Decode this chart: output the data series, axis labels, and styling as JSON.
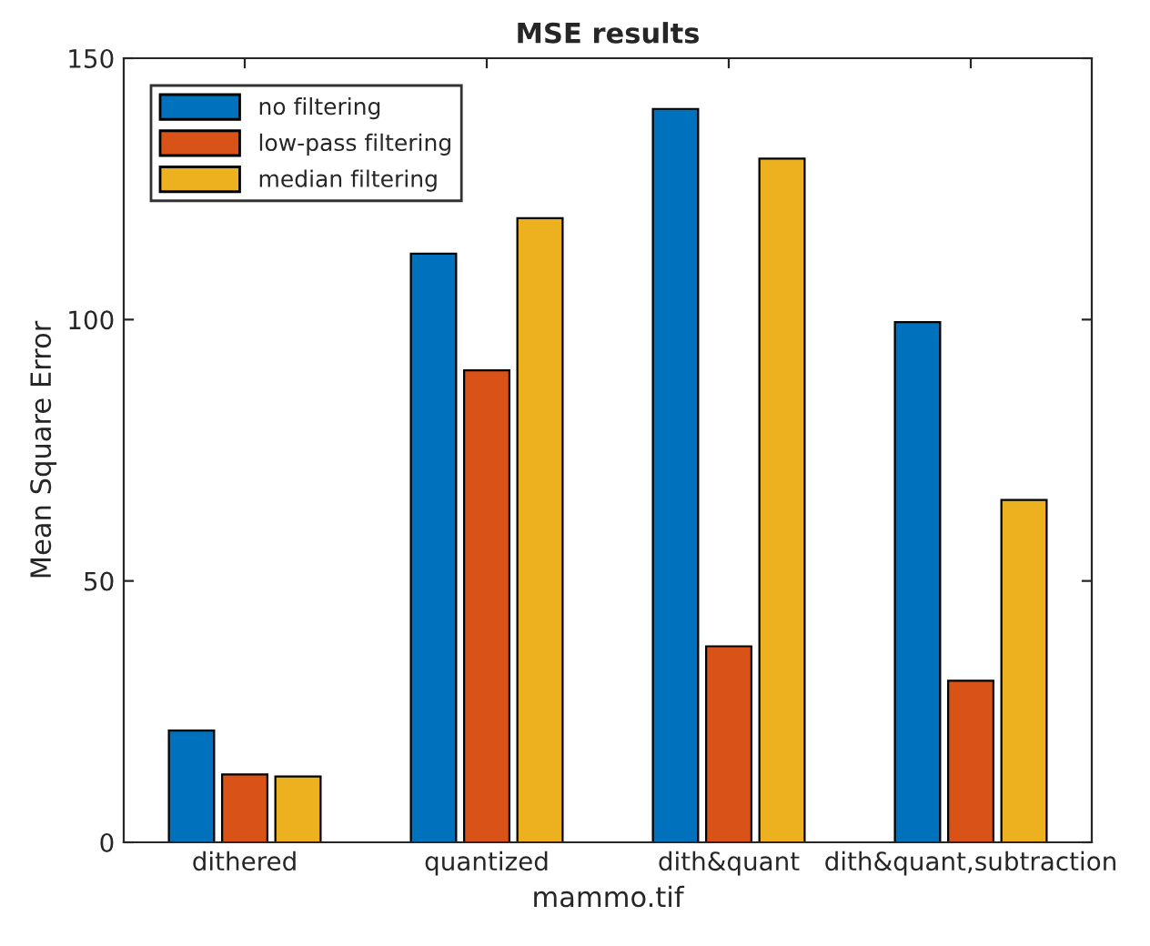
{
  "chart_data": {
    "type": "bar",
    "title": "MSE results",
    "xlabel": "mammo.tif",
    "ylabel": "Mean Square Error",
    "categories": [
      "dithered",
      "quantized",
      "dith&quant",
      "dith&quant,subtraction"
    ],
    "series": [
      {
        "name": "no filtering",
        "color": "#0072bd",
        "values": [
          21.4,
          112.6,
          140.3,
          99.5
        ]
      },
      {
        "name": "low-pass filtering",
        "color": "#d95319",
        "values": [
          13.0,
          90.3,
          37.5,
          30.9
        ]
      },
      {
        "name": "median filtering",
        "color": "#edb120",
        "values": [
          12.6,
          119.4,
          130.8,
          65.5
        ]
      }
    ],
    "ylim": [
      0,
      150
    ],
    "yticks": [
      0,
      50,
      100,
      150
    ],
    "grid": false,
    "legend": "top left"
  }
}
